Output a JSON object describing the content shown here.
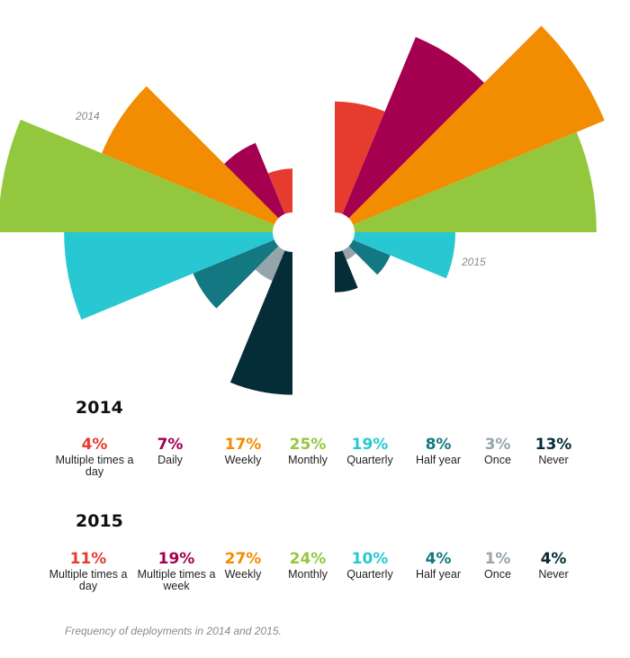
{
  "chart_data": {
    "type": "polar-bar",
    "title": "",
    "categories": [
      "Multiple times a day",
      "Daily",
      "Weekly",
      "Monthly",
      "Quarterly",
      "Half year",
      "Once",
      "Never"
    ],
    "colors": [
      "#E63C2F",
      "#A50050",
      "#F28C00",
      "#93C83E",
      "#28C8D2",
      "#147882",
      "#96A5AA",
      "#052D37"
    ],
    "series": [
      {
        "name": "2014",
        "values": [
          4,
          7,
          17,
          25,
          19,
          8,
          3,
          13
        ],
        "labels": [
          "Multiple times a day",
          "Daily",
          "Weekly",
          "Monthly",
          "Quarterly",
          "Half year",
          "Once",
          "Never"
        ],
        "percent_text": [
          "4%",
          "7%",
          "17%",
          "25%",
          "19%",
          "8%",
          "3%",
          "13%"
        ]
      },
      {
        "name": "2015",
        "values": [
          11,
          19,
          27,
          24,
          10,
          4,
          1,
          4
        ],
        "labels": [
          "Multiple times a day",
          "Multiple times a week",
          "Weekly",
          "Monthly",
          "Quarterly",
          "Half year",
          "Once",
          "Never"
        ],
        "percent_text": [
          "11%",
          "19%",
          "27%",
          "24%",
          "10%",
          "4%",
          "1%",
          "4%"
        ]
      }
    ]
  },
  "chart_tags": {
    "year_2014": "2014",
    "year_2015": "2015"
  },
  "legend_2014": {
    "title": "2014",
    "items": [
      {
        "pct": "4%",
        "label": "Multiple times a day",
        "color": "#E63C2F"
      },
      {
        "pct": "7%",
        "label": "Daily",
        "color": "#A50050"
      },
      {
        "pct": "17%",
        "label": "Weekly",
        "color": "#F28C00"
      },
      {
        "pct": "25%",
        "label": "Monthly",
        "color": "#93C83E"
      },
      {
        "pct": "19%",
        "label": "Quarterly",
        "color": "#28C8D2"
      },
      {
        "pct": "8%",
        "label": "Half year",
        "color": "#147882"
      },
      {
        "pct": "3%",
        "label": "Once",
        "color": "#96A5AA"
      },
      {
        "pct": "13%",
        "label": "Never",
        "color": "#052D37"
      }
    ]
  },
  "legend_2015": {
    "title": "2015",
    "items": [
      {
        "pct": "11%",
        "label": "Multiple times a day",
        "color": "#E63C2F"
      },
      {
        "pct": "19%",
        "label": "Multiple times a week",
        "color": "#A50050"
      },
      {
        "pct": "27%",
        "label": "Weekly",
        "color": "#F28C00"
      },
      {
        "pct": "24%",
        "label": "Monthly",
        "color": "#93C83E"
      },
      {
        "pct": "10%",
        "label": "Quarterly",
        "color": "#28C8D2"
      },
      {
        "pct": "4%",
        "label": "Half year",
        "color": "#147882"
      },
      {
        "pct": "1%",
        "label": "Once",
        "color": "#96A5AA"
      },
      {
        "pct": "4%",
        "label": "Never",
        "color": "#052D37"
      }
    ]
  },
  "caption": "Frequency of deployments in 2014 and 2015."
}
